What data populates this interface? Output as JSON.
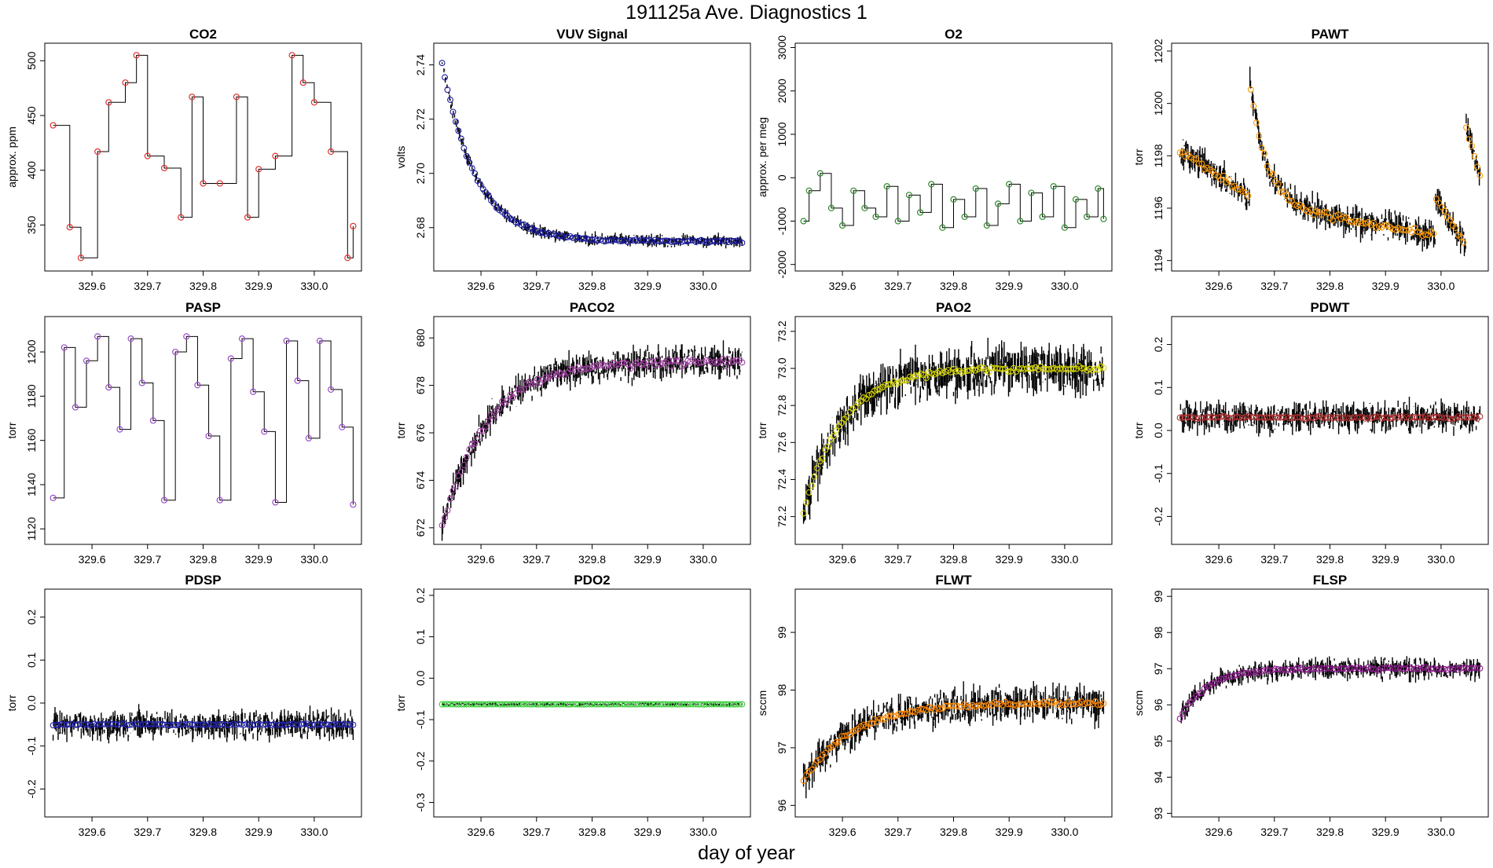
{
  "page": {
    "title": "191125a   Ave. Diagnostics 1",
    "xlabel": "day of year"
  },
  "chart_data": [
    {
      "type": "line",
      "title": "CO2",
      "ylabel": "approx. ppm",
      "color": "#e03030",
      "pattern": "steps",
      "ylim": [
        308,
        516
      ],
      "yticks": [
        350,
        400,
        450,
        500
      ],
      "ytick_labels": [
        "350",
        "400",
        "450",
        "500"
      ],
      "points": [
        [
          329.53,
          441
        ],
        [
          329.56,
          348
        ],
        [
          329.58,
          320
        ],
        [
          329.61,
          417
        ],
        [
          329.63,
          462
        ],
        [
          329.66,
          480
        ],
        [
          329.68,
          505
        ],
        [
          329.7,
          413
        ],
        [
          329.73,
          402
        ],
        [
          329.76,
          357
        ],
        [
          329.78,
          467
        ],
        [
          329.8,
          388
        ],
        [
          329.83,
          388
        ],
        [
          329.86,
          467
        ],
        [
          329.88,
          357
        ],
        [
          329.9,
          401
        ],
        [
          329.93,
          413
        ],
        [
          329.96,
          505
        ],
        [
          329.98,
          480
        ],
        [
          330.0,
          462
        ],
        [
          330.03,
          417
        ],
        [
          330.06,
          320
        ],
        [
          330.07,
          349
        ]
      ],
      "noise": 0,
      "jitter": 0
    },
    {
      "type": "line",
      "title": "VUV Signal",
      "ylabel": "volts",
      "color": "#1a1aa0",
      "pattern": "exp_decay",
      "ylim": [
        2.664,
        2.748
      ],
      "yticks": [
        2.68,
        2.7,
        2.72,
        2.74
      ],
      "ytick_labels": [
        "2.68",
        "2.70",
        "2.72",
        "2.74"
      ],
      "start": 2.741,
      "end": 2.675,
      "tau": 0.06,
      "noise": 0.0015,
      "jitter": 0.002
    },
    {
      "type": "line",
      "title": "O2",
      "ylabel": "approx. per meg",
      "color": "#2e8b2e",
      "pattern": "steps",
      "ylim": [
        -2150,
        3100
      ],
      "yticks": [
        -2000,
        -1000,
        0,
        1000,
        2000,
        3000
      ],
      "ytick_labels": [
        "-2000",
        "-1000",
        "0",
        "1000",
        "2000",
        "3000"
      ],
      "points": [
        [
          329.53,
          -1000
        ],
        [
          329.54,
          -300
        ],
        [
          329.56,
          100
        ],
        [
          329.58,
          -700
        ],
        [
          329.6,
          -1100
        ],
        [
          329.62,
          -300
        ],
        [
          329.64,
          -700
        ],
        [
          329.66,
          -900
        ],
        [
          329.68,
          -200
        ],
        [
          329.7,
          -1000
        ],
        [
          329.72,
          -400
        ],
        [
          329.74,
          -800
        ],
        [
          329.76,
          -150
        ],
        [
          329.78,
          -1150
        ],
        [
          329.8,
          -500
        ],
        [
          329.82,
          -900
        ],
        [
          329.84,
          -250
        ],
        [
          329.86,
          -1100
        ],
        [
          329.88,
          -600
        ],
        [
          329.9,
          -150
        ],
        [
          329.92,
          -1000
        ],
        [
          329.94,
          -350
        ],
        [
          329.96,
          -900
        ],
        [
          329.98,
          -200
        ],
        [
          330.0,
          -1150
        ],
        [
          330.02,
          -500
        ],
        [
          330.04,
          -900
        ],
        [
          330.06,
          -250
        ],
        [
          330.07,
          -950
        ]
      ],
      "noise": 0,
      "jitter": 0
    },
    {
      "type": "line",
      "title": "PAWT",
      "ylabel": "torr",
      "color": "#ff9a00",
      "pattern": "pawt",
      "ylim": [
        1193.6,
        1202.3
      ],
      "yticks": [
        1194,
        1196,
        1198,
        1200,
        1202
      ],
      "ytick_labels": [
        "1194",
        "1196",
        "1198",
        "1200",
        "1202"
      ],
      "noise": 0.35,
      "jitter": 0.5
    },
    {
      "type": "line",
      "title": "PASP",
      "ylabel": "torr",
      "color": "#9b4dca",
      "pattern": "steps",
      "ylim": [
        1113,
        1216
      ],
      "yticks": [
        1120,
        1140,
        1160,
        1180,
        1200
      ],
      "ytick_labels": [
        "1120",
        "1140",
        "1160",
        "1180",
        "1200"
      ],
      "points": [
        [
          329.53,
          1134
        ],
        [
          329.55,
          1202
        ],
        [
          329.57,
          1175
        ],
        [
          329.59,
          1196
        ],
        [
          329.61,
          1207
        ],
        [
          329.63,
          1184
        ],
        [
          329.65,
          1165
        ],
        [
          329.67,
          1206
        ],
        [
          329.69,
          1186
        ],
        [
          329.71,
          1169
        ],
        [
          329.73,
          1133
        ],
        [
          329.75,
          1200
        ],
        [
          329.77,
          1207
        ],
        [
          329.79,
          1185
        ],
        [
          329.81,
          1162
        ],
        [
          329.83,
          1133
        ],
        [
          329.85,
          1197
        ],
        [
          329.87,
          1206
        ],
        [
          329.89,
          1182
        ],
        [
          329.91,
          1164
        ],
        [
          329.93,
          1132
        ],
        [
          329.95,
          1205
        ],
        [
          329.97,
          1187
        ],
        [
          329.99,
          1161
        ],
        [
          330.01,
          1205
        ],
        [
          330.03,
          1183
        ],
        [
          330.05,
          1166
        ],
        [
          330.07,
          1131
        ]
      ],
      "noise": 0,
      "jitter": 0
    },
    {
      "type": "line",
      "title": "PACO2",
      "ylabel": "torr",
      "color": "#a040a0",
      "pattern": "exp_rise",
      "ylim": [
        671.3,
        680.9
      ],
      "yticks": [
        672,
        674,
        676,
        678,
        680
      ],
      "ytick_labels": [
        "672",
        "674",
        "676",
        "678",
        "680"
      ],
      "start": 672.0,
      "end": 679.0,
      "tau": 0.08,
      "noise": 0.4,
      "jitter": 0.6
    },
    {
      "type": "line",
      "title": "PAO2",
      "ylabel": "torr",
      "color": "#d6d600",
      "pattern": "exp_rise",
      "ylim": [
        72.05,
        73.28
      ],
      "yticks": [
        72.2,
        72.4,
        72.6,
        72.8,
        73.0,
        73.2
      ],
      "ytick_labels": [
        "72.2",
        "72.4",
        "72.6",
        "72.8",
        "73.0",
        "73.2"
      ],
      "start": 72.22,
      "end": 73.0,
      "tau": 0.07,
      "noise": 0.04,
      "jitter": 0.12
    },
    {
      "type": "line",
      "title": "PDWT",
      "ylabel": "torr",
      "color": "#b03030",
      "pattern": "flat",
      "ylim": [
        -0.265,
        0.265
      ],
      "yticks": [
        -0.2,
        -0.1,
        0.0,
        0.1,
        0.2
      ],
      "ytick_labels": [
        "-0.2",
        "-0.1",
        "0.0",
        "0.1",
        "0.2"
      ],
      "level": 0.03,
      "noise": 0.008,
      "jitter": 0.03
    },
    {
      "type": "line",
      "title": "PDSP",
      "ylabel": "torr",
      "color": "#2222aa",
      "pattern": "flat",
      "ylim": [
        -0.265,
        0.265
      ],
      "yticks": [
        -0.2,
        -0.1,
        0.0,
        0.1,
        0.2
      ],
      "ytick_labels": [
        "-0.2",
        "-0.1",
        "0.0",
        "0.1",
        "0.2"
      ],
      "level": -0.05,
      "noise": 0.006,
      "jitter": 0.03
    },
    {
      "type": "line",
      "title": "PDO2",
      "ylabel": "torr",
      "color": "#33cc33",
      "pattern": "flat",
      "ylim": [
        -0.335,
        0.215
      ],
      "yticks": [
        -0.3,
        -0.2,
        -0.1,
        0.0,
        0.1,
        0.2
      ],
      "ytick_labels": [
        "-0.3",
        "-0.2",
        "-0.1",
        "0.0",
        "0.1",
        "0.2"
      ],
      "level": -0.063,
      "noise": 0.001,
      "jitter": 0.003
    },
    {
      "type": "line",
      "title": "FLWT",
      "ylabel": "sccm",
      "color": "#ff8800",
      "pattern": "exp_rise",
      "ylim": [
        95.8,
        99.75
      ],
      "yticks": [
        96,
        97,
        98,
        99
      ],
      "ytick_labels": [
        "96",
        "97",
        "98",
        "99"
      ],
      "start": 96.45,
      "end": 97.78,
      "tau": 0.09,
      "noise": 0.1,
      "jitter": 0.28
    },
    {
      "type": "line",
      "title": "FLSP",
      "ylabel": "sccm",
      "color": "#8b1a8b",
      "pattern": "exp_rise",
      "ylim": [
        92.9,
        99.2
      ],
      "yticks": [
        93,
        94,
        95,
        96,
        97,
        98,
        99
      ],
      "ytick_labels": [
        "93",
        "94",
        "95",
        "96",
        "97",
        "98",
        "99"
      ],
      "start": 95.65,
      "end": 97.0,
      "tau": 0.05,
      "noise": 0.12,
      "jitter": 0.25
    }
  ],
  "shared_x": {
    "xlim": [
      329.515,
      330.085
    ],
    "xticks": [
      329.6,
      329.7,
      329.8,
      329.9,
      330.0
    ],
    "xtick_labels": [
      "329.6",
      "329.7",
      "329.8",
      "329.9",
      "330.0"
    ]
  }
}
